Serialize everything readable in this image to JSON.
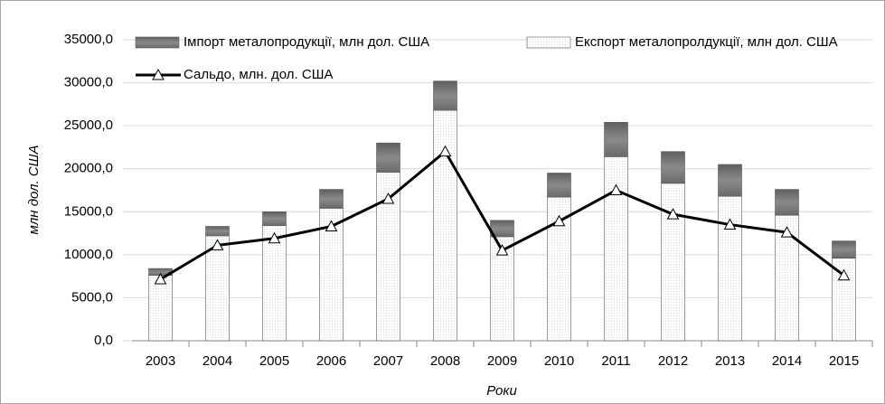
{
  "chart_data": {
    "type": "bar",
    "x_label": "Роки",
    "y_label": "млн дол. США",
    "categories": [
      "2003",
      "2004",
      "2005",
      "2006",
      "2007",
      "2008",
      "2009",
      "2010",
      "2011",
      "2012",
      "2013",
      "2014",
      "2015"
    ],
    "series": [
      {
        "name": "Експорт металопролдукції, млн дол. США",
        "type": "bar",
        "color": "#c6d9f1",
        "values": [
          7600,
          12200,
          13400,
          15400,
          19600,
          26800,
          12100,
          16700,
          21400,
          18300,
          16800,
          14600,
          9600
        ]
      },
      {
        "name": "Імпорт металопродукції, млн дол. США",
        "type": "bar",
        "color": "#7f7f7f",
        "values": [
          800,
          1100,
          1600,
          2200,
          3400,
          3400,
          1900,
          2800,
          4000,
          3700,
          3700,
          3000,
          2000
        ]
      },
      {
        "name": "Сальдо, млн. дол. США",
        "type": "line",
        "color": "#000000",
        "values": [
          7150,
          11100,
          11900,
          13300,
          16500,
          22000,
          10500,
          13900,
          17500,
          14700,
          13500,
          12600,
          7600
        ]
      }
    ],
    "ylim": [
      0,
      35000
    ],
    "yticks": [
      {
        "value": 0,
        "label": "0,0"
      },
      {
        "value": 5000,
        "label": "5000,0"
      },
      {
        "value": 10000,
        "label": "10000,0"
      },
      {
        "value": 15000,
        "label": "15000,0"
      },
      {
        "value": 20000,
        "label": "20000,0"
      },
      {
        "value": 25000,
        "label": "25000,0"
      },
      {
        "value": 30000,
        "label": "30000,0"
      },
      {
        "value": 35000,
        "label": "35000,0"
      }
    ],
    "grid": true
  }
}
